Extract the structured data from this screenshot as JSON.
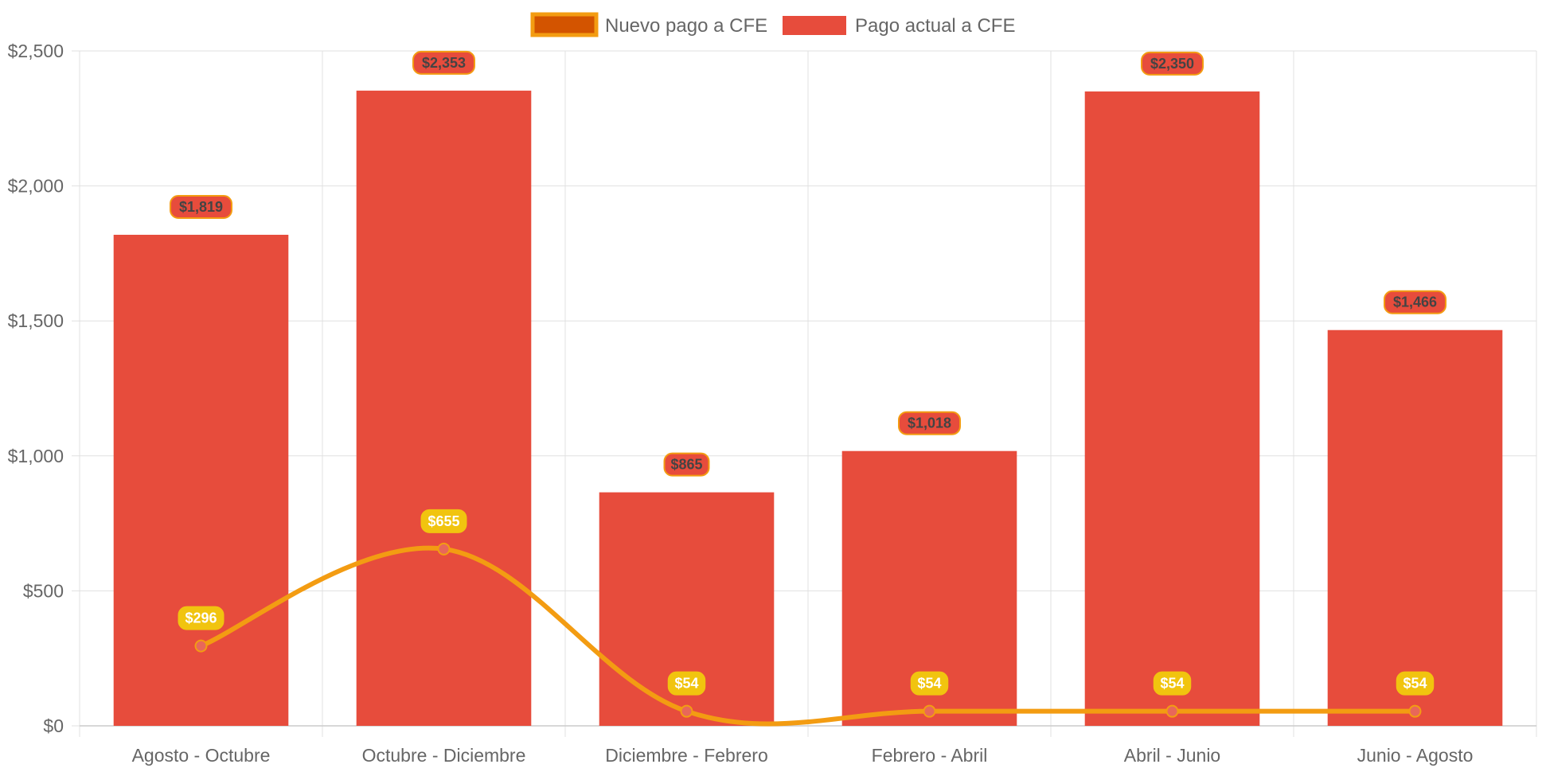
{
  "chart_data": {
    "type": "bar",
    "categories": [
      "Agosto - Octubre",
      "Octubre - Diciembre",
      "Diciembre - Febrero",
      "Febrero - Abril",
      "Abril - Junio",
      "Junio - Agosto"
    ],
    "series": [
      {
        "name": "Nuevo pago a CFE",
        "type": "line",
        "values": [
          296,
          655,
          54,
          54,
          54,
          54
        ],
        "labels": [
          "$296",
          "$655",
          "$54",
          "$54",
          "$54",
          "$54"
        ],
        "color": "#f39c12",
        "point_color": "#e8675a",
        "legend_fill": "#d35400",
        "label_bg": "#f1c40f"
      },
      {
        "name": "Pago actual a CFE",
        "type": "bar",
        "values": [
          1819,
          2353,
          865,
          1018,
          2350,
          1466
        ],
        "labels": [
          "$1,819",
          "$2,353",
          "$865",
          "$1,018",
          "$2,350",
          "$1,466"
        ],
        "color": "#e74c3c",
        "label_border": "#f39c12"
      }
    ],
    "ylim": [
      0,
      2500
    ],
    "yticks": [
      0,
      500,
      1000,
      1500,
      2000,
      2500
    ],
    "ytick_labels": [
      "$0",
      "$500",
      "$1,000",
      "$1,500",
      "$2,000",
      "$2,500"
    ],
    "legend_position": "top",
    "grid": true,
    "title": "",
    "xlabel": "",
    "ylabel": ""
  }
}
